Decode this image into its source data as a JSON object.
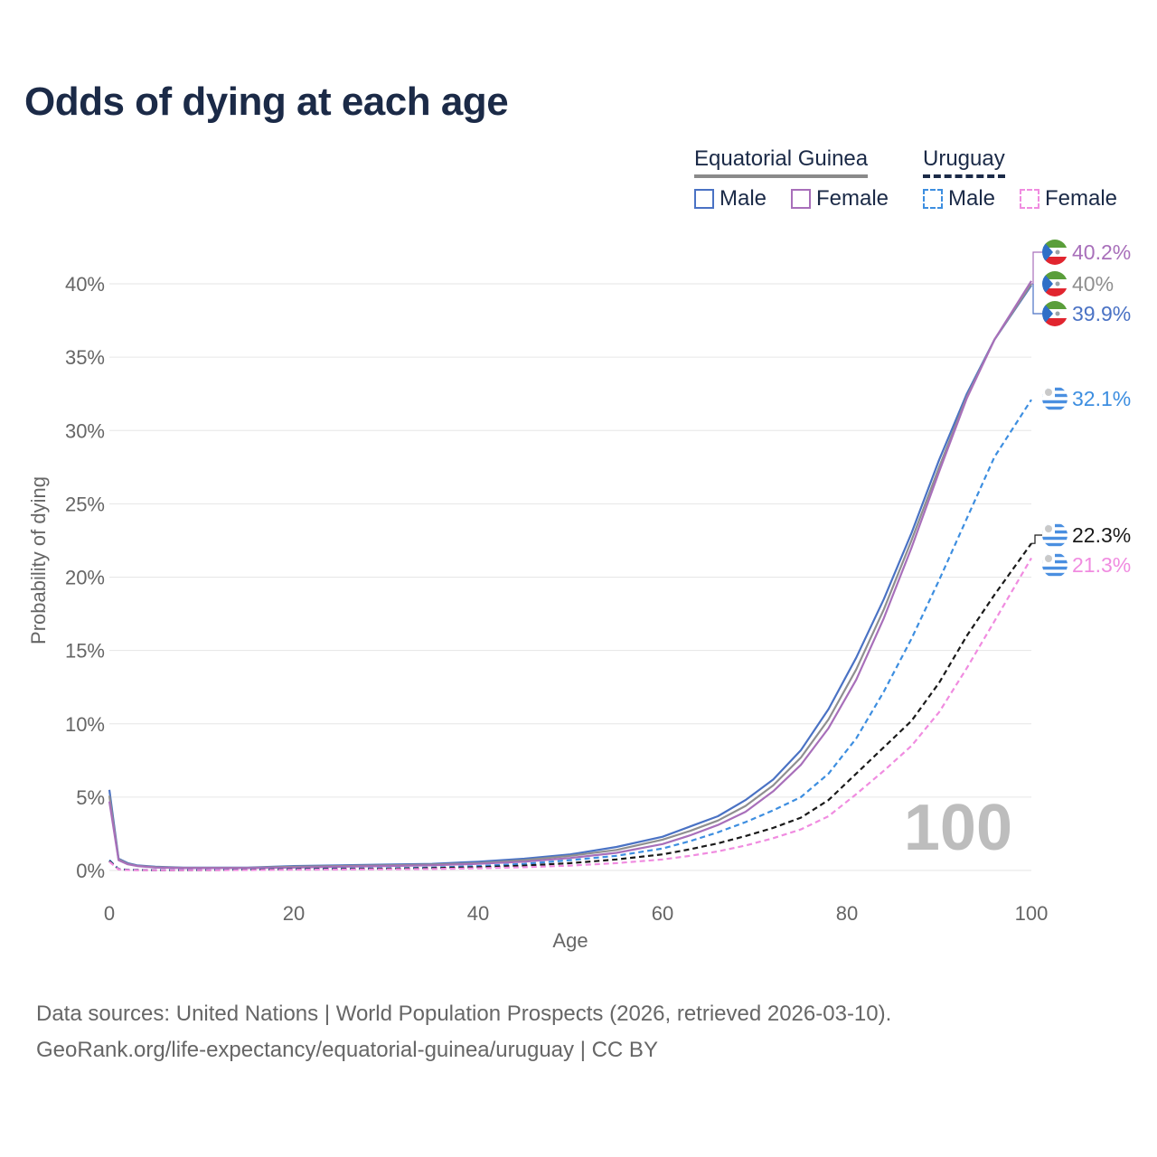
{
  "title": "Odds of dying at each age",
  "legend": {
    "group1": "Equatorial Guinea",
    "group2": "Uruguay",
    "items": [
      {
        "label": "Male",
        "color": "#4a72c4",
        "dashed": false
      },
      {
        "label": "Female",
        "color": "#a86fba",
        "dashed": false
      },
      {
        "label": "Male",
        "color": "#3d8ee0",
        "dashed": true
      },
      {
        "label": "Female",
        "color": "#f08ce0",
        "dashed": true
      }
    ]
  },
  "watermark": "100",
  "footer": {
    "line1": "Data sources: United Nations | World Population Prospects (2026, retrieved 2026-03-10).",
    "line2": "GeoRank.org/life-expectancy/equatorial-guinea/uruguay | CC BY"
  },
  "chart_data": {
    "type": "line",
    "title": "Odds of dying at each age",
    "xlabel": "Age",
    "ylabel": "Probability of dying",
    "xlim": [
      0,
      100
    ],
    "ylim": [
      0,
      42
    ],
    "xticks": [
      0,
      20,
      40,
      60,
      80,
      100
    ],
    "yticks": [
      0,
      5,
      10,
      15,
      20,
      25,
      30,
      35,
      40
    ],
    "ytick_suffix": "%",
    "grid": true,
    "series": [
      {
        "name": "Equatorial Guinea Male",
        "color": "#4a72c4",
        "dashed": false,
        "end_label": "39.9%",
        "label_color": "#4a72c4",
        "x": [
          0,
          1,
          2,
          3,
          5,
          8,
          10,
          15,
          20,
          25,
          30,
          35,
          40,
          45,
          50,
          55,
          60,
          63,
          66,
          69,
          72,
          75,
          78,
          81,
          84,
          87,
          90,
          93,
          96,
          100
        ],
        "y": [
          5.5,
          0.8,
          0.5,
          0.35,
          0.25,
          0.2,
          0.2,
          0.2,
          0.3,
          0.35,
          0.4,
          0.45,
          0.6,
          0.8,
          1.1,
          1.6,
          2.3,
          3.0,
          3.7,
          4.8,
          6.2,
          8.2,
          11.0,
          14.5,
          18.5,
          23.0,
          28.0,
          32.5,
          36.2,
          39.9
        ]
      },
      {
        "name": "Equatorial Guinea Total",
        "color": "#8f8f8f",
        "dashed": false,
        "end_label": "40%",
        "label_color": "#8f8f8f",
        "x": [
          0,
          1,
          2,
          3,
          5,
          8,
          10,
          15,
          20,
          25,
          30,
          35,
          40,
          45,
          50,
          55,
          60,
          63,
          66,
          69,
          72,
          75,
          78,
          81,
          84,
          87,
          90,
          93,
          96,
          100
        ],
        "y": [
          5.1,
          0.75,
          0.45,
          0.32,
          0.22,
          0.18,
          0.18,
          0.18,
          0.25,
          0.3,
          0.35,
          0.4,
          0.5,
          0.7,
          1.0,
          1.4,
          2.1,
          2.7,
          3.4,
          4.4,
          5.8,
          7.7,
          10.3,
          13.7,
          17.8,
          22.5,
          27.5,
          32.3,
          36.2,
          40.0
        ]
      },
      {
        "name": "Equatorial Guinea Female",
        "color": "#a86fba",
        "dashed": false,
        "end_label": "40.2%",
        "label_color": "#a86fba",
        "x": [
          0,
          1,
          2,
          3,
          5,
          8,
          10,
          15,
          20,
          25,
          30,
          35,
          40,
          45,
          50,
          55,
          60,
          63,
          66,
          69,
          72,
          75,
          78,
          81,
          84,
          87,
          90,
          93,
          96,
          100
        ],
        "y": [
          4.7,
          0.7,
          0.42,
          0.3,
          0.2,
          0.16,
          0.16,
          0.16,
          0.2,
          0.25,
          0.3,
          0.35,
          0.45,
          0.6,
          0.85,
          1.2,
          1.8,
          2.4,
          3.1,
          4.0,
          5.4,
          7.2,
          9.7,
          13.0,
          17.2,
          22.0,
          27.2,
          32.2,
          36.2,
          40.2
        ]
      },
      {
        "name": "Uruguay Male",
        "color": "#3d8ee0",
        "dashed": true,
        "end_label": "32.1%",
        "label_color": "#3d8ee0",
        "x": [
          0,
          1,
          2,
          3,
          5,
          10,
          15,
          20,
          25,
          30,
          35,
          40,
          45,
          50,
          55,
          60,
          63,
          66,
          69,
          72,
          75,
          78,
          81,
          84,
          87,
          90,
          93,
          96,
          100
        ],
        "y": [
          0.7,
          0.1,
          0.05,
          0.04,
          0.03,
          0.03,
          0.06,
          0.1,
          0.13,
          0.15,
          0.2,
          0.3,
          0.45,
          0.7,
          1.0,
          1.5,
          2.0,
          2.6,
          3.3,
          4.1,
          5.0,
          6.6,
          9.0,
          12.2,
          15.8,
          19.8,
          24.0,
          28.2,
          32.1
        ]
      },
      {
        "name": "Uruguay Total",
        "color": "#1a1a1a",
        "dashed": true,
        "end_label": "22.3%",
        "label_color": "#1a1a1a",
        "x": [
          0,
          1,
          2,
          3,
          5,
          10,
          15,
          20,
          25,
          30,
          35,
          40,
          45,
          50,
          55,
          60,
          63,
          66,
          69,
          72,
          75,
          78,
          81,
          84,
          87,
          90,
          93,
          96,
          100
        ],
        "y": [
          0.65,
          0.08,
          0.04,
          0.03,
          0.02,
          0.02,
          0.05,
          0.08,
          0.1,
          0.12,
          0.16,
          0.22,
          0.33,
          0.5,
          0.75,
          1.1,
          1.45,
          1.85,
          2.35,
          2.9,
          3.6,
          4.8,
          6.6,
          8.4,
          10.2,
          12.8,
          16.0,
          18.8,
          22.3
        ]
      },
      {
        "name": "Uruguay Female",
        "color": "#f08ce0",
        "dashed": true,
        "end_label": "21.3%",
        "label_color": "#f08ce0",
        "x": [
          0,
          1,
          2,
          3,
          5,
          10,
          15,
          20,
          25,
          30,
          35,
          40,
          45,
          50,
          55,
          60,
          63,
          66,
          69,
          72,
          75,
          78,
          81,
          84,
          87,
          90,
          93,
          96,
          100
        ],
        "y": [
          0.6,
          0.07,
          0.03,
          0.02,
          0.02,
          0.02,
          0.03,
          0.05,
          0.06,
          0.08,
          0.1,
          0.15,
          0.22,
          0.33,
          0.5,
          0.75,
          1.0,
          1.3,
          1.7,
          2.2,
          2.8,
          3.7,
          5.2,
          6.8,
          8.5,
          10.8,
          13.8,
          17.0,
          21.3
        ]
      }
    ]
  }
}
